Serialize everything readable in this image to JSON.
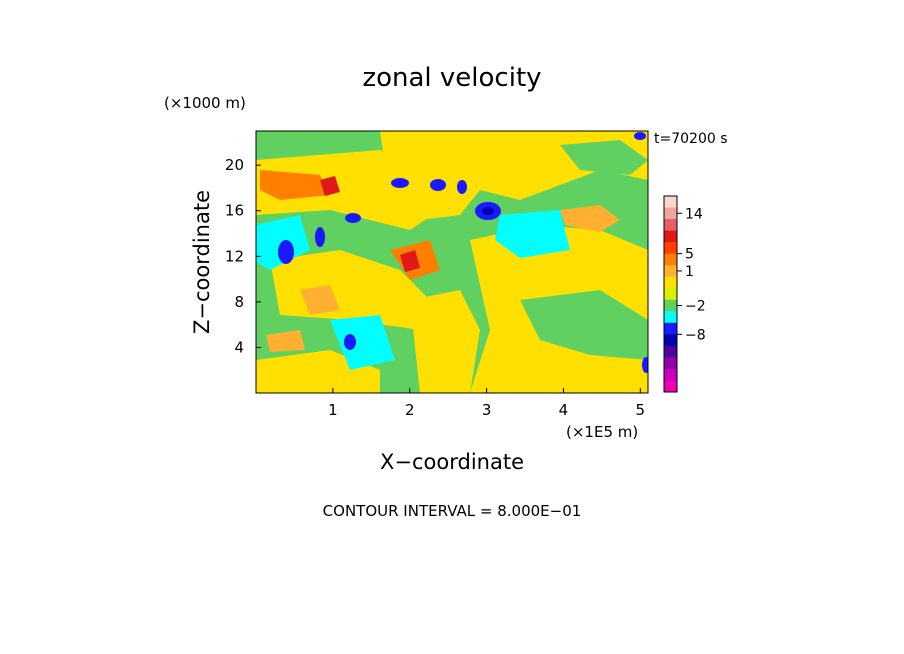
{
  "chart_data": {
    "type": "heatmap",
    "title": "zonal velocity",
    "time_label": "t=70200 s",
    "xlabel": "X−coordinate",
    "ylabel": "Z−coordinate",
    "x_unit": "(×1E5 m)",
    "z_unit": "(×1000 m)",
    "xlim": [
      0,
      5.1
    ],
    "zlim": [
      0,
      23
    ],
    "x_ticks": [
      "1",
      "2",
      "3",
      "4",
      "5"
    ],
    "z_ticks": [
      "4",
      "8",
      "12",
      "16",
      "20"
    ],
    "colorbar_labels": [
      "14",
      "5",
      "1",
      "−2",
      "−8"
    ],
    "colorbar_colors": [
      "#f9d8d0",
      "#f0a4a0",
      "#e86060",
      "#e01818",
      "#ff4000",
      "#ff8000",
      "#ffb030",
      "#ffe000",
      "#d8f000",
      "#60d060",
      "#00ffff",
      "#1a1aff",
      "#0000b0",
      "#5000a0",
      "#9000a8",
      "#c800c0",
      "#f000b0"
    ],
    "contour_interval": "CONTOUR INTERVAL = 8.000E−01"
  }
}
